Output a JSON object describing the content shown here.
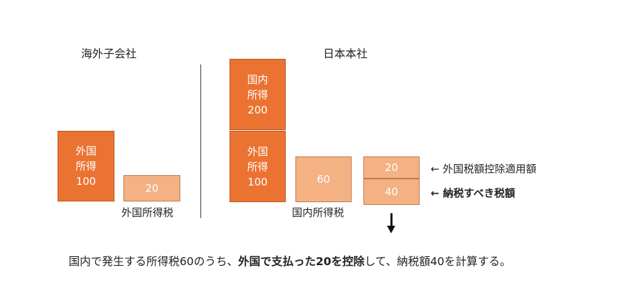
{
  "headings": {
    "subsidiary": "海外子会社",
    "headquarters": "日本本社"
  },
  "subsidiary": {
    "foreign_income_box": "外国\n所得\n100",
    "foreign_tax_box": "20",
    "foreign_tax_caption": "外国所得税"
  },
  "headquarters": {
    "domestic_income_box": "国内\n所得\n200",
    "foreign_income_box": "外国\n所得\n100",
    "domestic_tax_box": "60",
    "domestic_tax_caption": "国内所得税",
    "credit_box": "20",
    "payable_box": "40"
  },
  "notes": {
    "credit_note": "← 外国税額控除適用額",
    "payable_note": "← 納税すべき税額"
  },
  "sentence": {
    "part1": "国内で発生する所得税60のうち、",
    "part2_bold": "外国で支払った20を控除",
    "part3": "して、納税額40を計算する。"
  },
  "colors": {
    "dark_orange": "#eb7332",
    "light_orange": "#f4b184"
  }
}
